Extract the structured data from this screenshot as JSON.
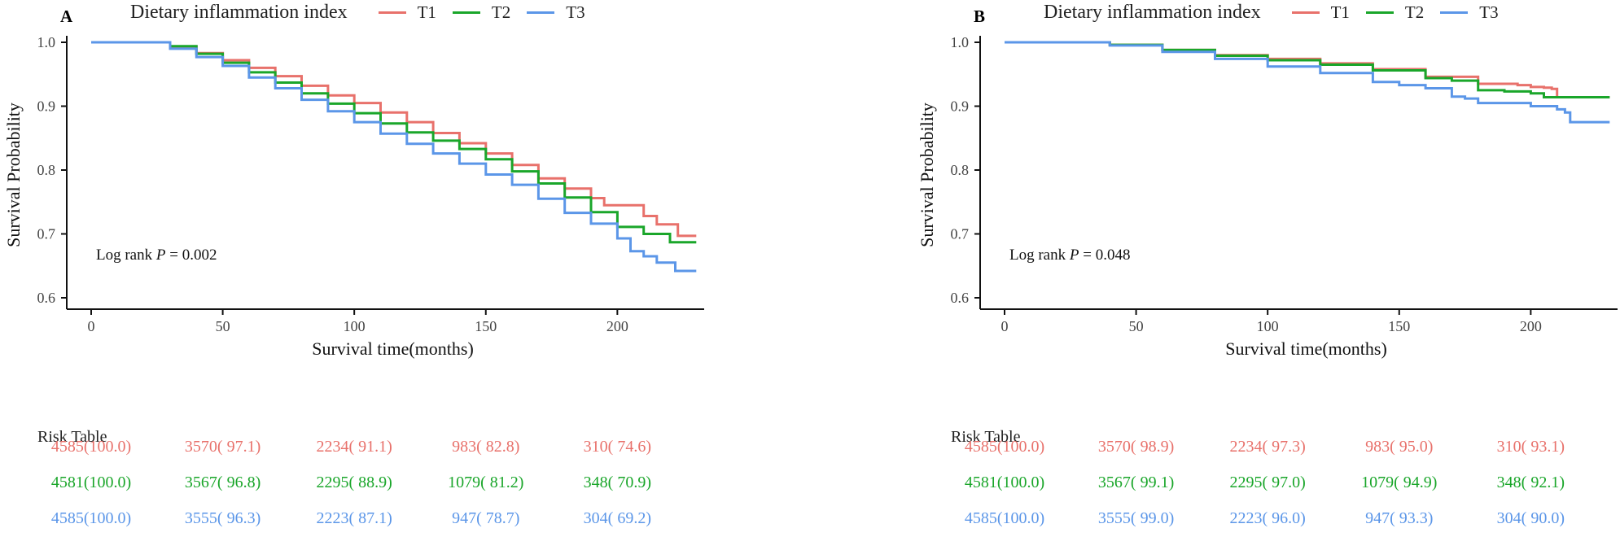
{
  "chart_data": [
    {
      "type": "line",
      "panel_label": "A",
      "legend_title": "Dietary inflammation index",
      "xlabel": "Survival time(months)",
      "ylabel": "Survival Probability",
      "xlim": [
        0,
        233
      ],
      "ylim": [
        0.6,
        1.0
      ],
      "xticks": [
        0,
        50,
        100,
        150,
        200
      ],
      "yticks": [
        0.6,
        0.7,
        0.8,
        0.9,
        1.0
      ],
      "annotation": {
        "prefix": "Log rank ",
        "italic": "P",
        "suffix": " = 0.002"
      },
      "series": [
        {
          "name": "T1",
          "color": "#E8716B",
          "x": [
            0,
            25,
            30,
            40,
            50,
            60,
            70,
            80,
            90,
            100,
            110,
            120,
            130,
            140,
            150,
            160,
            170,
            180,
            190,
            195,
            200,
            210,
            215,
            220,
            223,
            230
          ],
          "y": [
            1.0,
            1.0,
            0.993,
            0.983,
            0.972,
            0.96,
            0.947,
            0.932,
            0.917,
            0.905,
            0.89,
            0.875,
            0.858,
            0.842,
            0.826,
            0.808,
            0.787,
            0.771,
            0.756,
            0.745,
            0.745,
            0.728,
            0.715,
            0.715,
            0.697,
            0.697
          ]
        },
        {
          "name": "T2",
          "color": "#1AA62A",
          "x": [
            0,
            25,
            30,
            40,
            50,
            60,
            70,
            80,
            90,
            100,
            110,
            120,
            130,
            140,
            150,
            160,
            170,
            180,
            190,
            200,
            210,
            220,
            230
          ],
          "y": [
            1.0,
            1.0,
            0.994,
            0.982,
            0.968,
            0.953,
            0.937,
            0.92,
            0.904,
            0.889,
            0.873,
            0.859,
            0.846,
            0.833,
            0.817,
            0.798,
            0.779,
            0.757,
            0.734,
            0.711,
            0.7,
            0.687,
            0.687
          ]
        },
        {
          "name": "T3",
          "color": "#5B96E8",
          "x": [
            0,
            25,
            30,
            40,
            50,
            60,
            70,
            80,
            90,
            100,
            110,
            120,
            130,
            140,
            150,
            160,
            170,
            180,
            190,
            200,
            205,
            210,
            215,
            222,
            230
          ],
          "y": [
            1.0,
            1.0,
            0.99,
            0.977,
            0.963,
            0.945,
            0.928,
            0.91,
            0.892,
            0.875,
            0.857,
            0.841,
            0.826,
            0.81,
            0.793,
            0.777,
            0.755,
            0.733,
            0.716,
            0.693,
            0.673,
            0.665,
            0.655,
            0.642,
            0.642
          ]
        }
      ],
      "risk_table": {
        "title": "Risk Table",
        "times": [
          0,
          50,
          100,
          150,
          200
        ],
        "rows": [
          {
            "series": "T1",
            "cells": [
              "4585(100.0)",
              "3570( 97.1)",
              "2234( 91.1)",
              "983( 82.8)",
              "310( 74.6)"
            ]
          },
          {
            "series": "T2",
            "cells": [
              "4581(100.0)",
              "3567( 96.8)",
              "2295( 88.9)",
              "1079( 81.2)",
              "348( 70.9)"
            ]
          },
          {
            "series": "T3",
            "cells": [
              "4585(100.0)",
              "3555( 96.3)",
              "2223( 87.1)",
              "947( 78.7)",
              "304( 69.2)"
            ]
          }
        ]
      }
    },
    {
      "type": "line",
      "panel_label": "B",
      "legend_title": "Dietary inflammation index",
      "xlabel": "Survival time(months)",
      "ylabel": "Survival Probability",
      "xlim": [
        0,
        233
      ],
      "ylim": [
        0.6,
        1.0
      ],
      "xticks": [
        0,
        50,
        100,
        150,
        200
      ],
      "yticks": [
        0.6,
        0.7,
        0.8,
        0.9,
        1.0
      ],
      "annotation": {
        "prefix": "Log rank ",
        "italic": "P",
        "suffix": " = 0.048"
      },
      "series": [
        {
          "name": "T1",
          "color": "#E8716B",
          "x": [
            0,
            25,
            40,
            60,
            80,
            100,
            120,
            140,
            160,
            180,
            195,
            200,
            205,
            208,
            210,
            230
          ],
          "y": [
            1.0,
            1.0,
            0.996,
            0.988,
            0.98,
            0.974,
            0.967,
            0.958,
            0.946,
            0.935,
            0.933,
            0.93,
            0.929,
            0.927,
            0.914,
            0.914
          ]
        },
        {
          "name": "T2",
          "color": "#1AA62A",
          "x": [
            0,
            25,
            40,
            60,
            80,
            100,
            120,
            140,
            160,
            170,
            180,
            190,
            200,
            205,
            230
          ],
          "y": [
            1.0,
            1.0,
            0.996,
            0.988,
            0.979,
            0.972,
            0.965,
            0.956,
            0.944,
            0.94,
            0.925,
            0.923,
            0.92,
            0.914,
            0.914
          ]
        },
        {
          "name": "T3",
          "color": "#5B96E8",
          "x": [
            0,
            25,
            40,
            60,
            80,
            100,
            120,
            140,
            150,
            160,
            170,
            175,
            180,
            190,
            200,
            210,
            213,
            215,
            230
          ],
          "y": [
            1.0,
            1.0,
            0.995,
            0.985,
            0.974,
            0.962,
            0.952,
            0.938,
            0.933,
            0.928,
            0.915,
            0.912,
            0.905,
            0.905,
            0.9,
            0.895,
            0.89,
            0.875,
            0.875
          ]
        }
      ],
      "risk_table": {
        "title": "Risk Table",
        "times": [
          0,
          50,
          100,
          150,
          200
        ],
        "rows": [
          {
            "series": "T1",
            "cells": [
              "4585(100.0)",
              "3570( 98.9)",
              "2234( 97.3)",
              "983( 95.0)",
              "310( 93.1)"
            ]
          },
          {
            "series": "T2",
            "cells": [
              "4581(100.0)",
              "3567( 99.1)",
              "2295( 97.0)",
              "1079( 94.9)",
              "348( 92.1)"
            ]
          },
          {
            "series": "T3",
            "cells": [
              "4585(100.0)",
              "3555( 99.0)",
              "2223( 96.0)",
              "947( 93.3)",
              "304( 90.0)"
            ]
          }
        ]
      }
    }
  ]
}
